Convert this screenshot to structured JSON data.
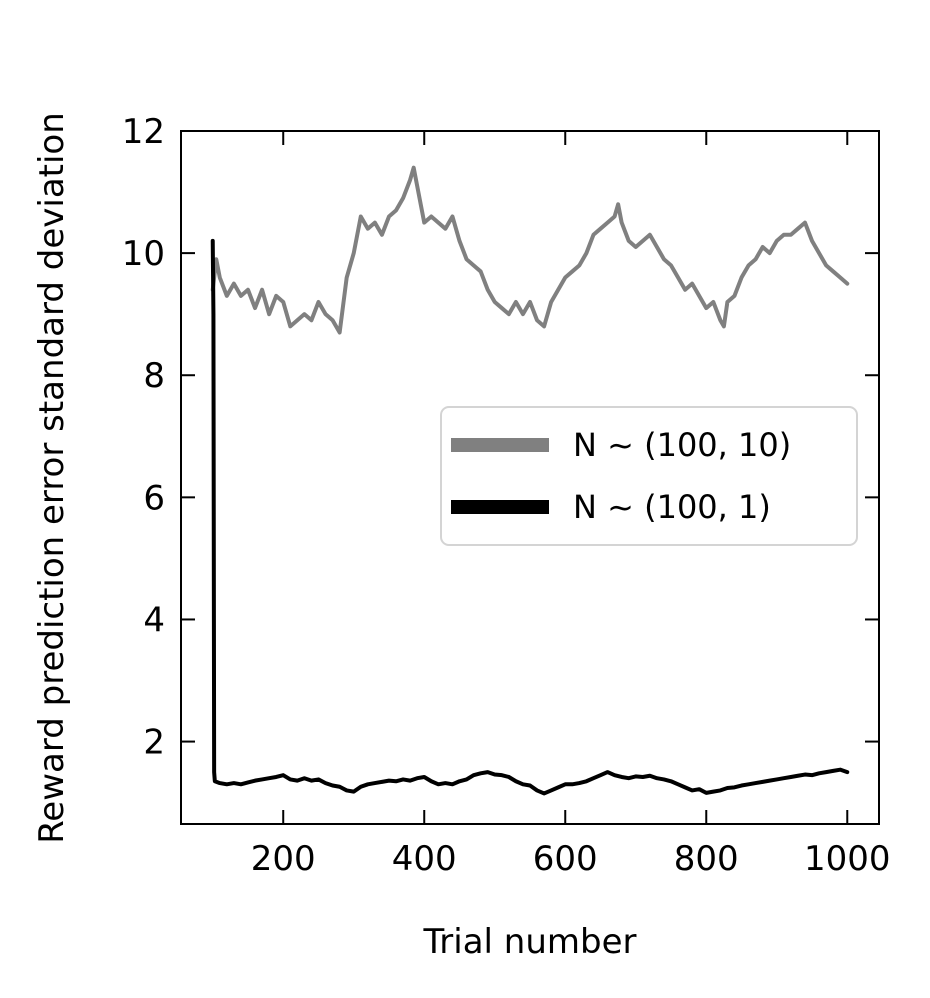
{
  "chart_data": {
    "type": "line",
    "xlabel": "Trial number",
    "ylabel": "Reward prediction error standard deviation",
    "xlim": [
      55,
      1045
    ],
    "ylim": [
      0.65,
      12
    ],
    "xticks": [
      200,
      400,
      600,
      800,
      1000
    ],
    "yticks": [
      2,
      4,
      6,
      8,
      10,
      12
    ],
    "xtick_labels": [
      "200",
      "400",
      "600",
      "800",
      "1000"
    ],
    "ytick_labels": [
      "2",
      "4",
      "6",
      "8",
      "10",
      "12"
    ],
    "grid": false,
    "legend_position": "center-right",
    "series": [
      {
        "name": "N ~ (100, 10)",
        "color": "#808080",
        "x": [
          100,
          105,
          110,
          120,
          130,
          140,
          150,
          160,
          170,
          180,
          190,
          200,
          210,
          220,
          230,
          240,
          250,
          260,
          270,
          280,
          290,
          300,
          310,
          320,
          330,
          340,
          350,
          360,
          370,
          380,
          385,
          390,
          400,
          410,
          420,
          430,
          440,
          450,
          460,
          470,
          480,
          490,
          500,
          510,
          520,
          530,
          540,
          550,
          560,
          570,
          580,
          590,
          600,
          610,
          620,
          630,
          640,
          650,
          660,
          670,
          675,
          680,
          690,
          700,
          710,
          720,
          730,
          740,
          750,
          760,
          770,
          780,
          790,
          800,
          810,
          820,
          825,
          830,
          840,
          850,
          860,
          870,
          880,
          890,
          900,
          910,
          920,
          930,
          940,
          950,
          960,
          970,
          980,
          990,
          1000
        ],
        "values": [
          9.4,
          9.9,
          9.6,
          9.3,
          9.5,
          9.3,
          9.4,
          9.1,
          9.4,
          9.0,
          9.3,
          9.2,
          8.8,
          8.9,
          9.0,
          8.9,
          9.2,
          9.0,
          8.9,
          8.7,
          9.6,
          10.0,
          10.6,
          10.4,
          10.5,
          10.3,
          10.6,
          10.7,
          10.9,
          11.2,
          11.4,
          11.1,
          10.5,
          10.6,
          10.5,
          10.4,
          10.6,
          10.2,
          9.9,
          9.8,
          9.7,
          9.4,
          9.2,
          9.1,
          9.0,
          9.2,
          9.0,
          9.2,
          8.9,
          8.8,
          9.2,
          9.4,
          9.6,
          9.7,
          9.8,
          10.0,
          10.3,
          10.4,
          10.5,
          10.6,
          10.8,
          10.5,
          10.2,
          10.1,
          10.2,
          10.3,
          10.1,
          9.9,
          9.8,
          9.6,
          9.4,
          9.5,
          9.3,
          9.1,
          9.2,
          8.9,
          8.8,
          9.2,
          9.3,
          9.6,
          9.8,
          9.9,
          10.1,
          10.0,
          10.2,
          10.3,
          10.3,
          10.4,
          10.5,
          10.2,
          10.0,
          9.8,
          9.7,
          9.6,
          9.5
        ]
      },
      {
        "name": "N ~ (100, 1)",
        "color": "#000000",
        "x": [
          100,
          101,
          102,
          103,
          110,
          120,
          130,
          140,
          150,
          160,
          170,
          180,
          190,
          200,
          210,
          220,
          230,
          240,
          250,
          260,
          270,
          280,
          290,
          300,
          310,
          320,
          330,
          340,
          350,
          360,
          370,
          380,
          390,
          400,
          410,
          420,
          430,
          440,
          450,
          460,
          470,
          480,
          490,
          500,
          510,
          520,
          530,
          540,
          550,
          560,
          570,
          580,
          590,
          600,
          610,
          620,
          630,
          640,
          650,
          660,
          670,
          680,
          690,
          700,
          710,
          720,
          730,
          740,
          750,
          760,
          770,
          780,
          790,
          800,
          810,
          820,
          830,
          840,
          850,
          860,
          870,
          880,
          890,
          900,
          910,
          920,
          930,
          940,
          950,
          960,
          970,
          980,
          990,
          1000
        ],
        "values": [
          10.2,
          9.0,
          1.5,
          1.35,
          1.32,
          1.3,
          1.32,
          1.3,
          1.33,
          1.36,
          1.38,
          1.4,
          1.42,
          1.45,
          1.38,
          1.36,
          1.4,
          1.36,
          1.38,
          1.32,
          1.28,
          1.26,
          1.2,
          1.18,
          1.26,
          1.3,
          1.32,
          1.34,
          1.36,
          1.35,
          1.38,
          1.36,
          1.4,
          1.42,
          1.35,
          1.3,
          1.32,
          1.3,
          1.35,
          1.38,
          1.45,
          1.48,
          1.5,
          1.46,
          1.45,
          1.42,
          1.35,
          1.3,
          1.28,
          1.2,
          1.15,
          1.2,
          1.25,
          1.3,
          1.3,
          1.32,
          1.35,
          1.4,
          1.45,
          1.5,
          1.45,
          1.42,
          1.4,
          1.43,
          1.42,
          1.44,
          1.4,
          1.38,
          1.35,
          1.3,
          1.25,
          1.2,
          1.22,
          1.16,
          1.18,
          1.2,
          1.24,
          1.25,
          1.28,
          1.3,
          1.32,
          1.34,
          1.36,
          1.38,
          1.4,
          1.42,
          1.44,
          1.46,
          1.45,
          1.48,
          1.5,
          1.52,
          1.54,
          1.5
        ]
      }
    ]
  }
}
